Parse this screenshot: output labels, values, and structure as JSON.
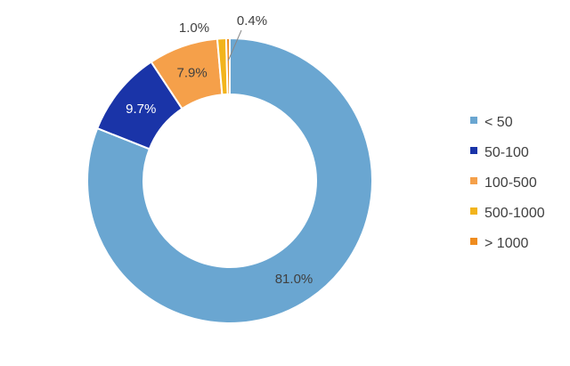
{
  "chart_data": {
    "type": "pie",
    "donut": true,
    "start": "top",
    "direction": "clockwise",
    "categories": [
      "< 50",
      "50-100",
      "100-500",
      "500-1000",
      "> 1000"
    ],
    "values": [
      81.0,
      9.7,
      7.9,
      1.0,
      0.4
    ],
    "data_labels": [
      "81.0%",
      "9.7%",
      "7.9%",
      "1.0%",
      "0.4%"
    ],
    "colors": [
      "#6aa6d1",
      "#1a34a8",
      "#f5a04a",
      "#f2b41c",
      "#ef8c1e"
    ],
    "legend_placement": "right",
    "title": ""
  }
}
